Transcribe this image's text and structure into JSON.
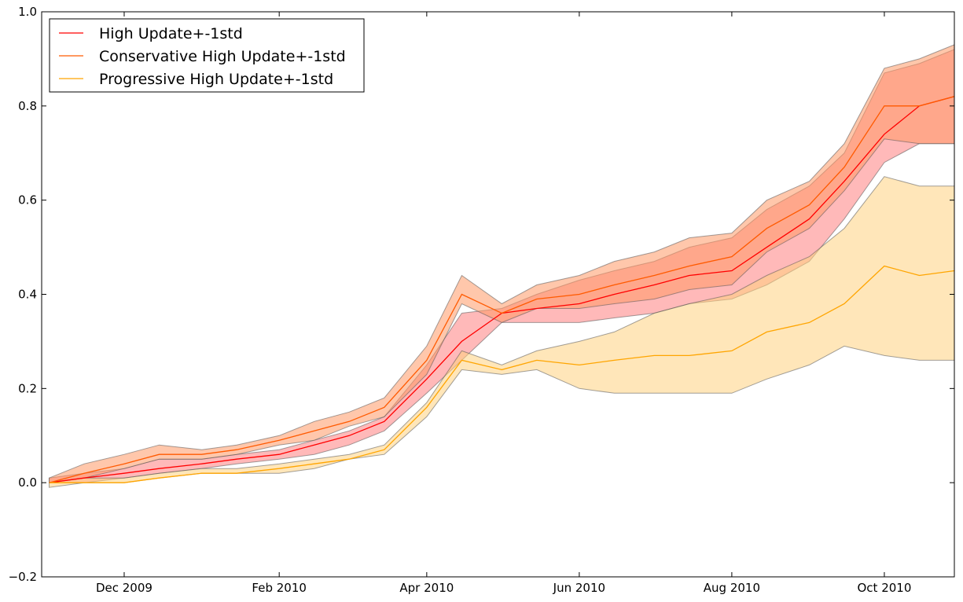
{
  "chart_data": {
    "type": "area",
    "title": "",
    "xlabel": "",
    "ylabel": "",
    "x": [
      "2009-11-01",
      "2009-11-15",
      "2009-12-01",
      "2009-12-15",
      "2010-01-01",
      "2010-01-15",
      "2010-02-01",
      "2010-02-15",
      "2010-03-01",
      "2010-03-15",
      "2010-04-01",
      "2010-04-15",
      "2010-05-01",
      "2010-05-15",
      "2010-06-01",
      "2010-06-15",
      "2010-07-01",
      "2010-07-15",
      "2010-08-01",
      "2010-08-15",
      "2010-09-01",
      "2010-09-15",
      "2010-10-01",
      "2010-10-15",
      "2010-10-29"
    ],
    "xlim": [
      "2009-10-29",
      "2010-10-29"
    ],
    "ylim": [
      -0.2,
      1.0
    ],
    "yticks": [
      "−0.2",
      "0.0",
      "0.2",
      "0.4",
      "0.6",
      "0.8",
      "1.0"
    ],
    "ytick_values": [
      -0.2,
      0.0,
      0.2,
      0.4,
      0.6,
      0.8,
      1.0
    ],
    "xticks": [
      "Dec 2009",
      "Feb 2010",
      "Apr 2010",
      "Jun 2010",
      "Aug 2010",
      "Oct 2010"
    ],
    "xtick_dates": [
      "2009-12-01",
      "2010-02-01",
      "2010-04-01",
      "2010-06-01",
      "2010-08-01",
      "2010-10-01"
    ],
    "grid": false,
    "legend_position": "top-left",
    "legend_title": "",
    "series": [
      {
        "name": "High Update+-1std",
        "color": "#ff0000",
        "band_color": "#ff8080",
        "mean": [
          0.0,
          0.01,
          0.02,
          0.03,
          0.04,
          0.05,
          0.06,
          0.08,
          0.1,
          0.13,
          0.22,
          0.3,
          0.36,
          0.37,
          0.38,
          0.4,
          0.42,
          0.44,
          0.45,
          0.5,
          0.56,
          0.64,
          0.74,
          0.8,
          0.82
        ],
        "upper": [
          0.01,
          0.02,
          0.03,
          0.05,
          0.05,
          0.06,
          0.07,
          0.09,
          0.11,
          0.14,
          0.25,
          0.36,
          0.37,
          0.4,
          0.43,
          0.45,
          0.47,
          0.5,
          0.52,
          0.58,
          0.63,
          0.7,
          0.87,
          0.89,
          0.92
        ],
        "lower": [
          0.0,
          0.0,
          0.01,
          0.02,
          0.03,
          0.04,
          0.05,
          0.06,
          0.08,
          0.11,
          0.19,
          0.26,
          0.34,
          0.34,
          0.34,
          0.35,
          0.36,
          0.38,
          0.39,
          0.42,
          0.47,
          0.56,
          0.68,
          0.72,
          0.72
        ]
      },
      {
        "name": "Conservative High Update+-1std",
        "color": "#ff5a00",
        "band_color": "#ff9966",
        "mean": [
          0.0,
          0.02,
          0.04,
          0.06,
          0.06,
          0.07,
          0.09,
          0.11,
          0.13,
          0.16,
          0.26,
          0.4,
          0.36,
          0.39,
          0.4,
          0.42,
          0.44,
          0.46,
          0.48,
          0.54,
          0.59,
          0.67,
          0.8,
          0.8,
          0.82
        ],
        "upper": [
          0.01,
          0.04,
          0.06,
          0.08,
          0.07,
          0.08,
          0.1,
          0.13,
          0.15,
          0.18,
          0.29,
          0.44,
          0.38,
          0.42,
          0.44,
          0.47,
          0.49,
          0.52,
          0.53,
          0.6,
          0.64,
          0.72,
          0.88,
          0.9,
          0.93
        ],
        "lower": [
          0.0,
          0.01,
          0.03,
          0.05,
          0.05,
          0.06,
          0.08,
          0.09,
          0.12,
          0.14,
          0.23,
          0.38,
          0.34,
          0.37,
          0.37,
          0.38,
          0.39,
          0.41,
          0.42,
          0.49,
          0.54,
          0.62,
          0.73,
          0.72,
          0.72
        ]
      },
      {
        "name": "Progressive High Update+-1std",
        "color": "#ffa500",
        "band_color": "#ffd27f",
        "mean": [
          0.0,
          0.0,
          0.0,
          0.01,
          0.02,
          0.02,
          0.03,
          0.04,
          0.05,
          0.07,
          0.16,
          0.26,
          0.24,
          0.26,
          0.25,
          0.26,
          0.27,
          0.27,
          0.28,
          0.32,
          0.34,
          0.38,
          0.46,
          0.44,
          0.45
        ],
        "upper": [
          0.0,
          0.01,
          0.01,
          0.02,
          0.03,
          0.03,
          0.04,
          0.05,
          0.06,
          0.08,
          0.17,
          0.28,
          0.25,
          0.28,
          0.3,
          0.32,
          0.36,
          0.38,
          0.4,
          0.44,
          0.48,
          0.54,
          0.65,
          0.63,
          0.63
        ],
        "lower": [
          -0.01,
          0.0,
          0.0,
          0.01,
          0.02,
          0.02,
          0.02,
          0.03,
          0.05,
          0.06,
          0.14,
          0.24,
          0.23,
          0.24,
          0.2,
          0.19,
          0.19,
          0.19,
          0.19,
          0.22,
          0.25,
          0.29,
          0.27,
          0.26,
          0.26
        ]
      }
    ]
  }
}
